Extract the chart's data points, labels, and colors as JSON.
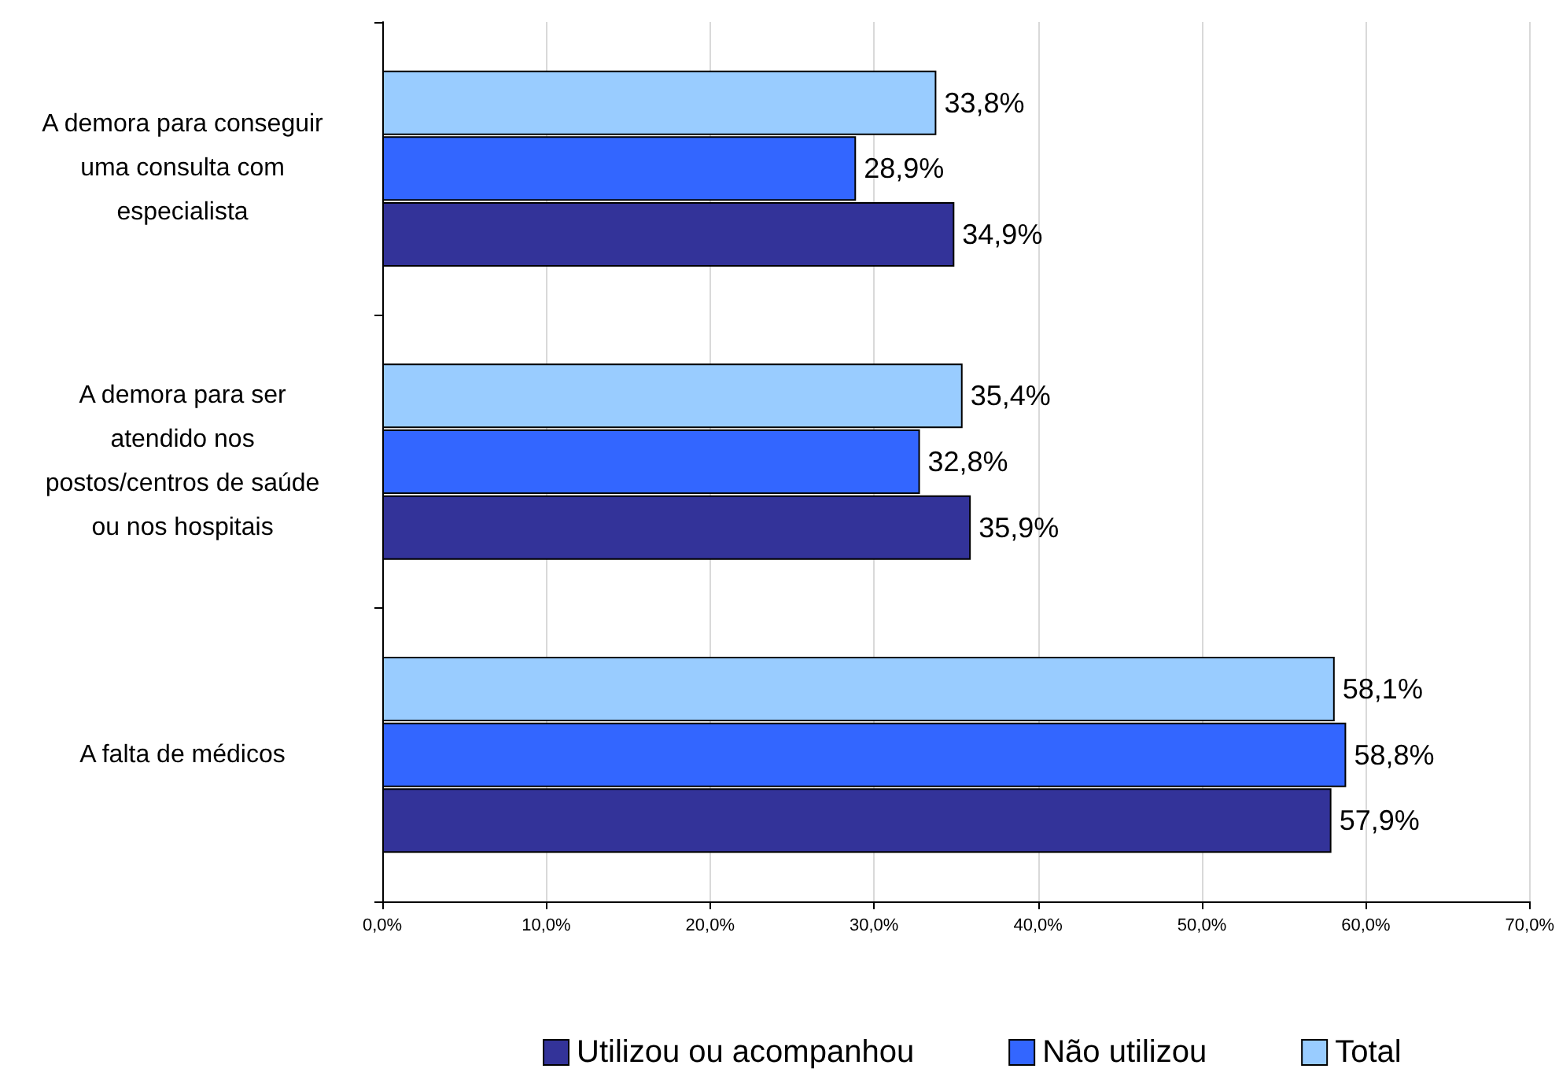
{
  "chart_data": {
    "type": "bar",
    "orientation": "horizontal",
    "categories": [
      "A demora para conseguir\numa consulta com\nespecialista",
      "A demora para ser\natendido nos\npostos/centros de saúde\nou nos hospitais",
      "A falta de médicos"
    ],
    "series": [
      {
        "name": "Utilizou ou acompanhou",
        "color": "#333399",
        "values": [
          34.9,
          35.9,
          57.9
        ],
        "value_labels": [
          "34,9%",
          "35,9%",
          "57,9%"
        ]
      },
      {
        "name": "Não utilizou",
        "color": "#3366ff",
        "values": [
          28.9,
          32.8,
          58.8
        ],
        "value_labels": [
          "28,9%",
          "32,8%",
          "58,8%"
        ]
      },
      {
        "name": "Total",
        "color": "#99ccff",
        "values": [
          33.8,
          35.4,
          58.1
        ],
        "value_labels": [
          "33,8%",
          "35,4%",
          "58,1%"
        ]
      }
    ],
    "xlim": [
      0,
      70
    ],
    "xticks": [
      {
        "value": 0,
        "label": "0,0%"
      },
      {
        "value": 10,
        "label": "10,0%"
      },
      {
        "value": 20,
        "label": "20,0%"
      },
      {
        "value": 30,
        "label": "30,0%"
      },
      {
        "value": 40,
        "label": "40,0%"
      },
      {
        "value": 50,
        "label": "50,0%"
      },
      {
        "value": 60,
        "label": "60,0%"
      },
      {
        "value": 70,
        "label": "70,0%"
      }
    ],
    "grid": "x",
    "legend": "bottom"
  }
}
